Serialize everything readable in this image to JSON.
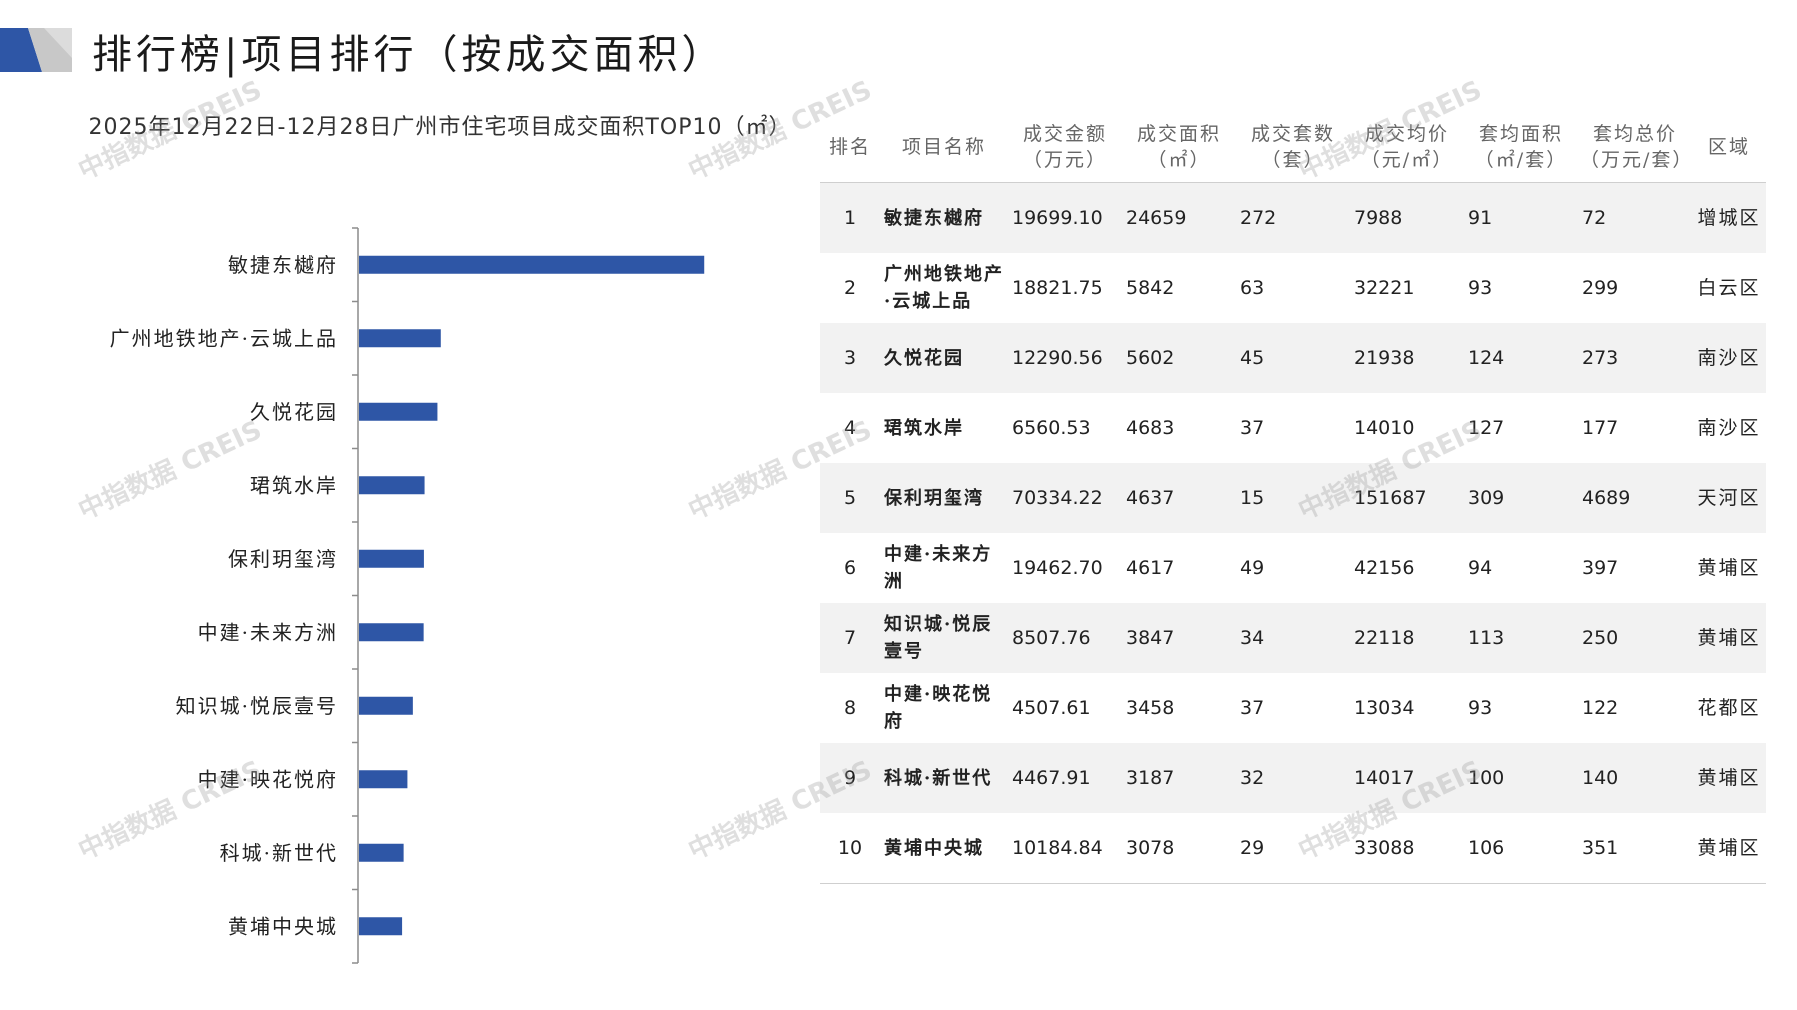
{
  "page": {
    "title": "排行榜|项目排行（按成交面积）"
  },
  "colors": {
    "bar": "#2e56a6",
    "accent": "#2e56a6",
    "mark_grey": "#c8c8c8"
  },
  "chart_data": {
    "type": "bar",
    "orientation": "horizontal",
    "title": "2025年12月22日-12月28日广州市住宅项目成交面积TOP10（㎡）",
    "categories": [
      "敏捷东樾府",
      "广州地铁地产·云城上品",
      "久悦花园",
      "珺筑水岸",
      "保利玥玺湾",
      "中建·未来方洲",
      "知识城·悦辰壹号",
      "中建·映花悦府",
      "科城·新世代",
      "黄埔中央城"
    ],
    "values": [
      24659,
      5842,
      5602,
      4683,
      4637,
      4617,
      3847,
      3458,
      3187,
      3078
    ],
    "xlim": [
      0,
      25000
    ],
    "grid": false,
    "legend": "none"
  },
  "table": {
    "headers": [
      {
        "line1": "排名",
        "line2": ""
      },
      {
        "line1": "项目名称",
        "line2": ""
      },
      {
        "line1": "成交金额",
        "line2": "（万元）"
      },
      {
        "line1": "成交面积",
        "line2": "（㎡）"
      },
      {
        "line1": "成交套数",
        "line2": "（套）"
      },
      {
        "line1": "成交均价",
        "line2": "（元/㎡）"
      },
      {
        "line1": "套均面积",
        "line2": "（㎡/套）"
      },
      {
        "line1": "套均总价",
        "line2": "（万元/套）"
      },
      {
        "line1": "区域",
        "line2": ""
      }
    ],
    "rows": [
      [
        "1",
        "敏捷东樾府",
        "19699.10",
        "24659",
        "272",
        "7988",
        "91",
        "72",
        "增城区"
      ],
      [
        "2",
        "广州地铁地产·云城上品",
        "18821.75",
        "5842",
        "63",
        "32221",
        "93",
        "299",
        "白云区"
      ],
      [
        "3",
        "久悦花园",
        "12290.56",
        "5602",
        "45",
        "21938",
        "124",
        "273",
        "南沙区"
      ],
      [
        "4",
        "珺筑水岸",
        "6560.53",
        "4683",
        "37",
        "14010",
        "127",
        "177",
        "南沙区"
      ],
      [
        "5",
        "保利玥玺湾",
        "70334.22",
        "4637",
        "15",
        "151687",
        "309",
        "4689",
        "天河区"
      ],
      [
        "6",
        "中建·未来方洲",
        "19462.70",
        "4617",
        "49",
        "42156",
        "94",
        "397",
        "黄埔区"
      ],
      [
        "7",
        "知识城·悦辰壹号",
        "8507.76",
        "3847",
        "34",
        "22118",
        "113",
        "250",
        "黄埔区"
      ],
      [
        "8",
        "中建·映花悦府",
        "4507.61",
        "3458",
        "37",
        "13034",
        "93",
        "122",
        "花都区"
      ],
      [
        "9",
        "科城·新世代",
        "4467.91",
        "3187",
        "32",
        "14017",
        "100",
        "140",
        "黄埔区"
      ],
      [
        "10",
        "黄埔中央城",
        "10184.84",
        "3078",
        "29",
        "33088",
        "106",
        "351",
        "黄埔区"
      ]
    ]
  },
  "watermark": "中指数据 CREIS"
}
